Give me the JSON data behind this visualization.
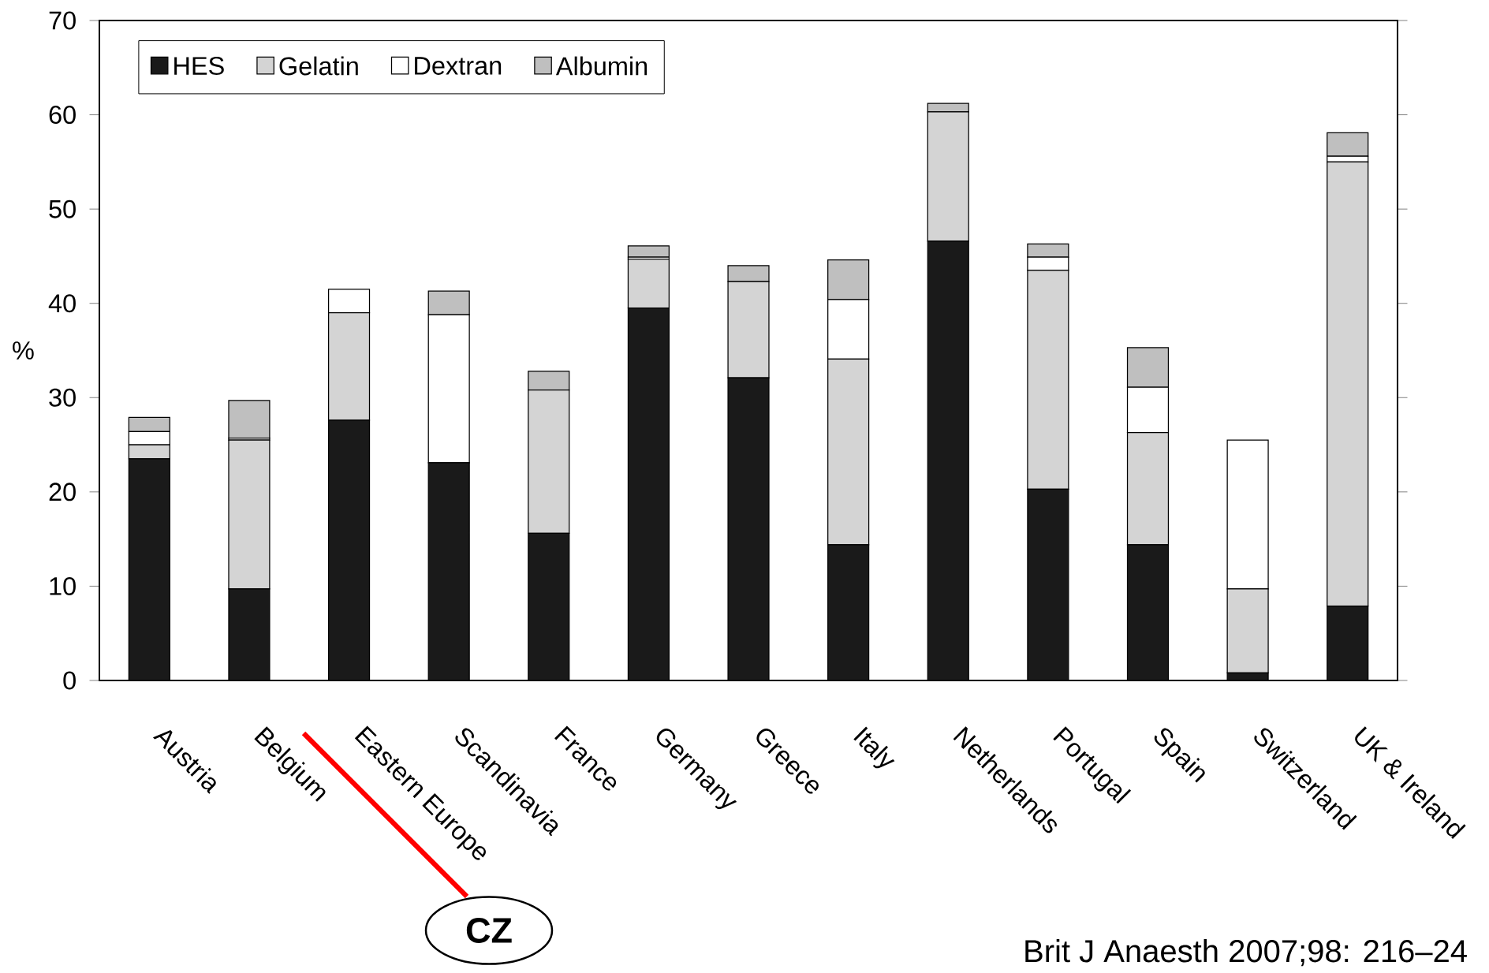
{
  "chart_data": {
    "type": "bar",
    "stacked": true,
    "ylabel": "%",
    "categories": [
      "Austria",
      "Belgium",
      "Eastern Europe",
      "Scandinavia",
      "France",
      "Germany",
      "Greece",
      "Italy",
      "Netherlands",
      "Portugal",
      "Spain",
      "Switzerland",
      "UK & Ireland"
    ],
    "series": [
      {
        "name": "HES",
        "color": "#1a1a1a",
        "values": [
          23.5,
          9.7,
          27.6,
          23.1,
          15.6,
          39.5,
          32.1,
          14.4,
          46.6,
          20.3,
          14.4,
          0.8,
          7.9
        ]
      },
      {
        "name": "Gelatin",
        "color": "#d4d4d4",
        "values": [
          1.5,
          15.8,
          11.4,
          0,
          15.2,
          5.2,
          10.2,
          19.7,
          13.7,
          23.2,
          11.9,
          8.9,
          47.1
        ]
      },
      {
        "name": "Dextran",
        "color": "#ffffff",
        "values": [
          1.4,
          0.2,
          2.5,
          15.7,
          0,
          0.2,
          0,
          6.3,
          0,
          1.4,
          4.8,
          15.8,
          0.6
        ]
      },
      {
        "name": "Albumin",
        "color": "#bfbfbf",
        "values": [
          1.5,
          4.0,
          0,
          2.5,
          2.0,
          1.2,
          1.7,
          4.2,
          0.9,
          1.4,
          4.2,
          0,
          2.5
        ]
      }
    ],
    "ylim": [
      0,
      70
    ],
    "yticks": [
      0,
      10,
      20,
      30,
      40,
      50,
      60,
      70
    ],
    "grid": false,
    "legend": "top left",
    "annotations": [
      "CZ",
      "Brit J Anaesth 2007;98: 216–24"
    ]
  }
}
